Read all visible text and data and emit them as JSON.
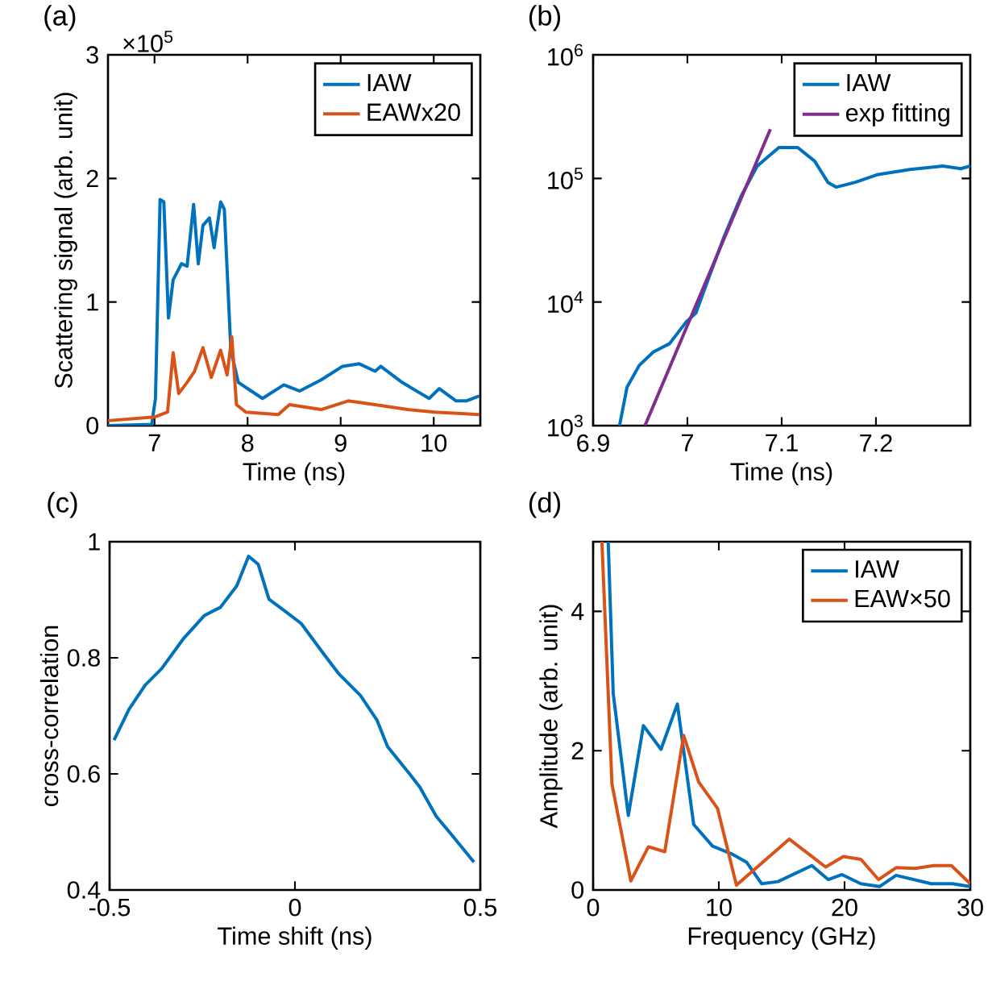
{
  "chart_data": [
    {
      "type": "line",
      "title": "(a)",
      "xlabel": "Time (ns)",
      "ylabel": "Scattering signal (arb. unit)",
      "annotations": [
        "×10$^{5}$"
      ],
      "xlim": [
        6.5,
        10.5
      ],
      "ylim": [
        0,
        3
      ],
      "xticks": [
        7,
        8,
        9,
        10
      ],
      "yticks": [
        0,
        1,
        2,
        3
      ],
      "legend": "top right",
      "line_style": "solid",
      "series": [
        {
          "name": "IAW",
          "color": "#0072bd",
          "x": [
            6.5,
            6.97,
            7.01,
            7.06,
            7.1,
            7.15,
            7.2,
            7.29,
            7.35,
            7.42,
            7.47,
            7.52,
            7.59,
            7.64,
            7.71,
            7.75,
            7.82,
            7.9,
            7.98,
            8.16,
            8.39,
            8.56,
            8.79,
            9.02,
            9.2,
            9.37,
            9.43,
            9.66,
            9.95,
            10.06,
            10.24,
            10.35,
            10.49
          ],
          "values": [
            0,
            0.01,
            0.22,
            1.83,
            1.81,
            0.87,
            1.18,
            1.31,
            1.29,
            1.79,
            1.31,
            1.62,
            1.68,
            1.44,
            1.81,
            1.75,
            0.61,
            0.35,
            0.31,
            0.22,
            0.33,
            0.28,
            0.37,
            0.48,
            0.5,
            0.44,
            0.48,
            0.35,
            0.22,
            0.3,
            0.2,
            0.2,
            0.24
          ]
        },
        {
          "name": "EAWx20",
          "color": "#d95319",
          "x": [
            6.5,
            7.0,
            7.14,
            7.2,
            7.26,
            7.35,
            7.43,
            7.52,
            7.61,
            7.71,
            7.78,
            7.83,
            7.88,
            7.98,
            8.33,
            8.45,
            8.79,
            9.08,
            9.37,
            9.72,
            10.01,
            10.49
          ],
          "values": [
            0.04,
            0.07,
            0.11,
            0.59,
            0.26,
            0.35,
            0.44,
            0.63,
            0.39,
            0.61,
            0.41,
            0.72,
            0.17,
            0.11,
            0.09,
            0.17,
            0.13,
            0.2,
            0.17,
            0.13,
            0.11,
            0.09
          ]
        }
      ]
    },
    {
      "type": "line",
      "title": "(b)",
      "xlabel": "Time (ns)",
      "xlim": [
        6.9,
        7.3
      ],
      "ylim": [
        1000,
        1000000
      ],
      "log": "y",
      "xticks": [
        6.9,
        7,
        7.1,
        7.2
      ],
      "yticks": [
        {
          "value": 1000,
          "label": "10$^{3}$"
        },
        {
          "value": 10000,
          "label": "10$^{4}$"
        },
        {
          "value": 100000,
          "label": "10$^{5}$"
        },
        {
          "value": 1000000,
          "label": "10$^{6}$"
        }
      ],
      "legend": "top right",
      "line_style": "solid",
      "series": [
        {
          "name": "IAW",
          "color": "#0072bd",
          "x": [
            6.928,
            6.936,
            6.949,
            6.964,
            6.981,
            6.999,
            7.009,
            7.022,
            7.039,
            7.057,
            7.074,
            7.097,
            7.117,
            7.135,
            7.149,
            7.158,
            7.178,
            7.201,
            7.236,
            7.271,
            7.29,
            7.3
          ],
          "values": [
            1000,
            2050,
            3080,
            3950,
            4600,
            6950,
            8150,
            15200,
            34000,
            72000,
            126000,
            178000,
            178000,
            138000,
            93000,
            85000,
            93000,
            107000,
            118000,
            126000,
            120000,
            126000
          ]
        },
        {
          "name": "exp fitting",
          "color": "#7e2f8e",
          "x": [
            6.955,
            7.088
          ],
          "values": [
            1000,
            250000
          ]
        }
      ]
    },
    {
      "type": "line",
      "title": "(c)",
      "xlabel": "Time shift (ns)",
      "ylabel": "cross-correlation",
      "xlim": [
        -0.5,
        0.5
      ],
      "ylim": [
        0.4,
        1
      ],
      "xticks": [
        -0.5,
        0,
        0.5
      ],
      "yticks": [
        0.4,
        0.6,
        0.8,
        1
      ],
      "line_style": "solid",
      "series": [
        {
          "color": "#0072bd",
          "x": [
            -0.488,
            -0.448,
            -0.404,
            -0.36,
            -0.302,
            -0.244,
            -0.201,
            -0.157,
            -0.125,
            -0.099,
            -0.07,
            -0.026,
            0.017,
            0.076,
            0.119,
            0.177,
            0.221,
            0.25,
            0.308,
            0.337,
            0.381,
            0.424,
            0.483
          ],
          "values": [
            0.658,
            0.711,
            0.753,
            0.781,
            0.832,
            0.873,
            0.887,
            0.924,
            0.975,
            0.961,
            0.901,
            0.88,
            0.859,
            0.808,
            0.772,
            0.735,
            0.693,
            0.647,
            0.601,
            0.577,
            0.527,
            0.494,
            0.448
          ]
        }
      ]
    },
    {
      "type": "line",
      "title": "(d)",
      "xlabel": "Frequency (GHz)",
      "ylabel": "Amplitude (arb. unit)",
      "xlim": [
        0,
        30
      ],
      "ylim": [
        0,
        5
      ],
      "xticks": [
        0,
        10,
        20,
        30
      ],
      "yticks": [
        0,
        2,
        4
      ],
      "legend": "top right",
      "line_style": "solid",
      "series": [
        {
          "name": "IAW",
          "color": "#0072bd",
          "x": [
            1.2,
            1.6,
            2.8,
            4.0,
            5.4,
            6.7,
            8.0,
            9.5,
            11.0,
            12.2,
            13.4,
            14.7,
            17.4,
            18.7,
            19.8,
            21.3,
            22.8,
            24.1,
            26.9,
            28.6,
            30
          ],
          "values": [
            5.0,
            2.82,
            1.07,
            2.36,
            2.02,
            2.67,
            0.94,
            0.63,
            0.52,
            0.4,
            0.09,
            0.12,
            0.35,
            0.15,
            0.22,
            0.09,
            0.05,
            0.21,
            0.09,
            0.09,
            0.05
          ]
        },
        {
          "name": "EAW×50",
          "color": "#d95319",
          "x": [
            0.7,
            1.5,
            3.0,
            4.4,
            5.7,
            7.2,
            8.4,
            9.9,
            11.4,
            15.6,
            18.5,
            19.9,
            21.3,
            22.7,
            24.1,
            25.6,
            27.1,
            28.5,
            30
          ],
          "values": [
            5.0,
            1.52,
            0.13,
            0.62,
            0.55,
            2.22,
            1.55,
            1.17,
            0.07,
            0.73,
            0.33,
            0.48,
            0.44,
            0.15,
            0.32,
            0.31,
            0.35,
            0.35,
            0.09
          ]
        }
      ]
    }
  ]
}
